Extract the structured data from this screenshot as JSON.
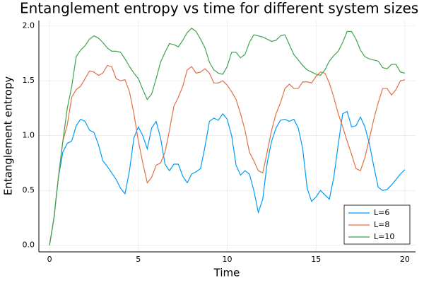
{
  "chart_data": {
    "type": "line",
    "title": "Entanglement entropy vs time for different system sizes",
    "x_label": "Time",
    "y_label": "Entanglement entropy",
    "x": [
      0,
      0.25,
      0.5,
      0.75,
      1,
      1.25,
      1.5,
      1.75,
      2,
      2.25,
      2.5,
      2.75,
      3,
      3.25,
      3.5,
      3.75,
      4,
      4.25,
      4.5,
      4.75,
      5,
      5.25,
      5.5,
      5.75,
      6,
      6.25,
      6.5,
      6.75,
      7,
      7.25,
      7.5,
      7.75,
      8,
      8.25,
      8.5,
      8.75,
      9,
      9.25,
      9.5,
      9.75,
      10,
      10.25,
      10.5,
      10.75,
      11,
      11.25,
      11.5,
      11.75,
      12,
      12.25,
      12.5,
      12.75,
      13,
      13.25,
      13.5,
      13.75,
      14,
      14.25,
      14.5,
      14.75,
      15,
      15.25,
      15.5,
      15.75,
      16,
      16.25,
      16.5,
      16.75,
      17,
      17.25,
      17.5,
      17.75,
      18,
      18.25,
      18.5,
      18.75,
      19,
      19.25,
      19.5,
      19.75,
      20
    ],
    "series": [
      {
        "name": "L=6",
        "color": "#009afa",
        "values": [
          0,
          0.25,
          0.62,
          0.85,
          0.93,
          0.95,
          1.09,
          1.15,
          1.13,
          1.05,
          1.03,
          0.92,
          0.77,
          0.72,
          0.66,
          0.6,
          0.52,
          0.47,
          0.68,
          0.98,
          1.08,
          1.0,
          0.88,
          1.07,
          1.13,
          0.98,
          0.74,
          0.68,
          0.74,
          0.74,
          0.63,
          0.57,
          0.65,
          0.67,
          0.7,
          0.9,
          1.13,
          1.16,
          1.14,
          1.2,
          1.15,
          1.0,
          0.73,
          0.64,
          0.68,
          0.65,
          0.5,
          0.3,
          0.42,
          0.75,
          0.95,
          1.07,
          1.14,
          1.15,
          1.13,
          1.15,
          1.07,
          0.88,
          0.52,
          0.4,
          0.44,
          0.5,
          0.46,
          0.42,
          0.62,
          0.92,
          1.2,
          1.22,
          1.08,
          1.09,
          1.17,
          1.08,
          0.93,
          0.72,
          0.53,
          0.5,
          0.51,
          0.55,
          0.6,
          0.65,
          0.69
        ]
      },
      {
        "name": "L=8",
        "color": "#e26f46",
        "values": [
          0,
          0.25,
          0.62,
          0.95,
          1.1,
          1.35,
          1.42,
          1.45,
          1.52,
          1.59,
          1.58,
          1.55,
          1.57,
          1.64,
          1.63,
          1.52,
          1.5,
          1.51,
          1.4,
          1.2,
          0.95,
          0.75,
          0.57,
          0.62,
          0.73,
          0.75,
          0.85,
          1.05,
          1.27,
          1.35,
          1.45,
          1.6,
          1.63,
          1.57,
          1.58,
          1.61,
          1.57,
          1.48,
          1.48,
          1.5,
          1.46,
          1.4,
          1.33,
          1.2,
          1.05,
          0.85,
          0.77,
          0.68,
          0.66,
          0.85,
          1.05,
          1.2,
          1.3,
          1.43,
          1.47,
          1.43,
          1.43,
          1.49,
          1.49,
          1.48,
          1.54,
          1.58,
          1.57,
          1.48,
          1.35,
          1.2,
          1.08,
          0.95,
          0.83,
          0.7,
          0.68,
          0.8,
          0.97,
          1.15,
          1.3,
          1.43,
          1.43,
          1.37,
          1.42,
          1.5,
          1.51
        ]
      },
      {
        "name": "L=10",
        "color": "#3ea44e",
        "values": [
          0,
          0.25,
          0.62,
          0.95,
          1.25,
          1.45,
          1.72,
          1.78,
          1.82,
          1.88,
          1.91,
          1.89,
          1.85,
          1.8,
          1.77,
          1.77,
          1.76,
          1.7,
          1.63,
          1.57,
          1.52,
          1.42,
          1.33,
          1.38,
          1.52,
          1.67,
          1.76,
          1.84,
          1.83,
          1.81,
          1.87,
          1.94,
          1.98,
          1.95,
          1.88,
          1.8,
          1.67,
          1.6,
          1.57,
          1.56,
          1.63,
          1.76,
          1.76,
          1.71,
          1.74,
          1.85,
          1.92,
          1.91,
          1.9,
          1.88,
          1.86,
          1.87,
          1.91,
          1.92,
          1.83,
          1.74,
          1.69,
          1.64,
          1.6,
          1.58,
          1.56,
          1.55,
          1.6,
          1.68,
          1.73,
          1.77,
          1.85,
          1.95,
          1.95,
          1.88,
          1.78,
          1.72,
          1.7,
          1.69,
          1.68,
          1.62,
          1.61,
          1.65,
          1.65,
          1.58,
          1.57
        ]
      }
    ],
    "xlim": [
      -0.6,
      20.6
    ],
    "ylim": [
      -0.06,
      2.05
    ],
    "xticks": [
      0,
      5,
      10,
      15,
      20
    ],
    "yticks": [
      {
        "value": 0,
        "label": "0.0"
      },
      {
        "value": 0.5,
        "label": "0.5"
      },
      {
        "value": 1,
        "label": "1.0"
      },
      {
        "value": 1.5,
        "label": "1.5"
      },
      {
        "value": 2,
        "label": "2.0"
      }
    ],
    "grid": true,
    "legend": "bottom-right"
  }
}
